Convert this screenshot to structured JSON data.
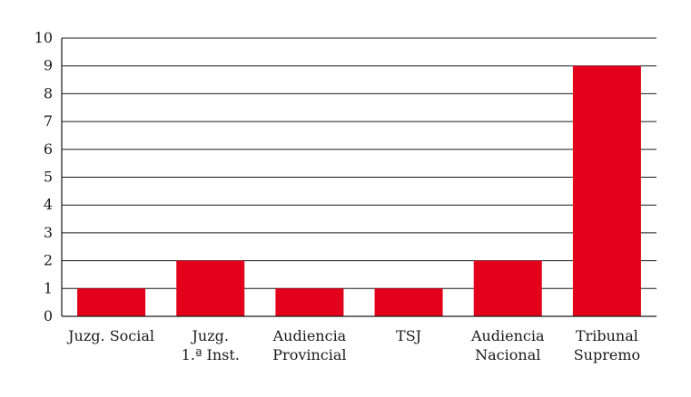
{
  "chart_data": {
    "type": "bar",
    "categories": [
      [
        "Juzg. Social"
      ],
      [
        "Juzg.",
        "1.ª Inst."
      ],
      [
        "Audiencia",
        "Provincial"
      ],
      [
        "TSJ"
      ],
      [
        "Audiencia",
        "Nacional"
      ],
      [
        "Tribunal",
        "Supremo"
      ]
    ],
    "values": [
      1,
      2,
      1,
      1,
      2,
      9
    ],
    "ylim": [
      0,
      10
    ],
    "yticks": [
      0,
      1,
      2,
      3,
      4,
      5,
      6,
      7,
      8,
      9,
      10
    ],
    "grid": true,
    "bar_color": "#e2001a",
    "title": "",
    "xlabel": "",
    "ylabel": ""
  }
}
